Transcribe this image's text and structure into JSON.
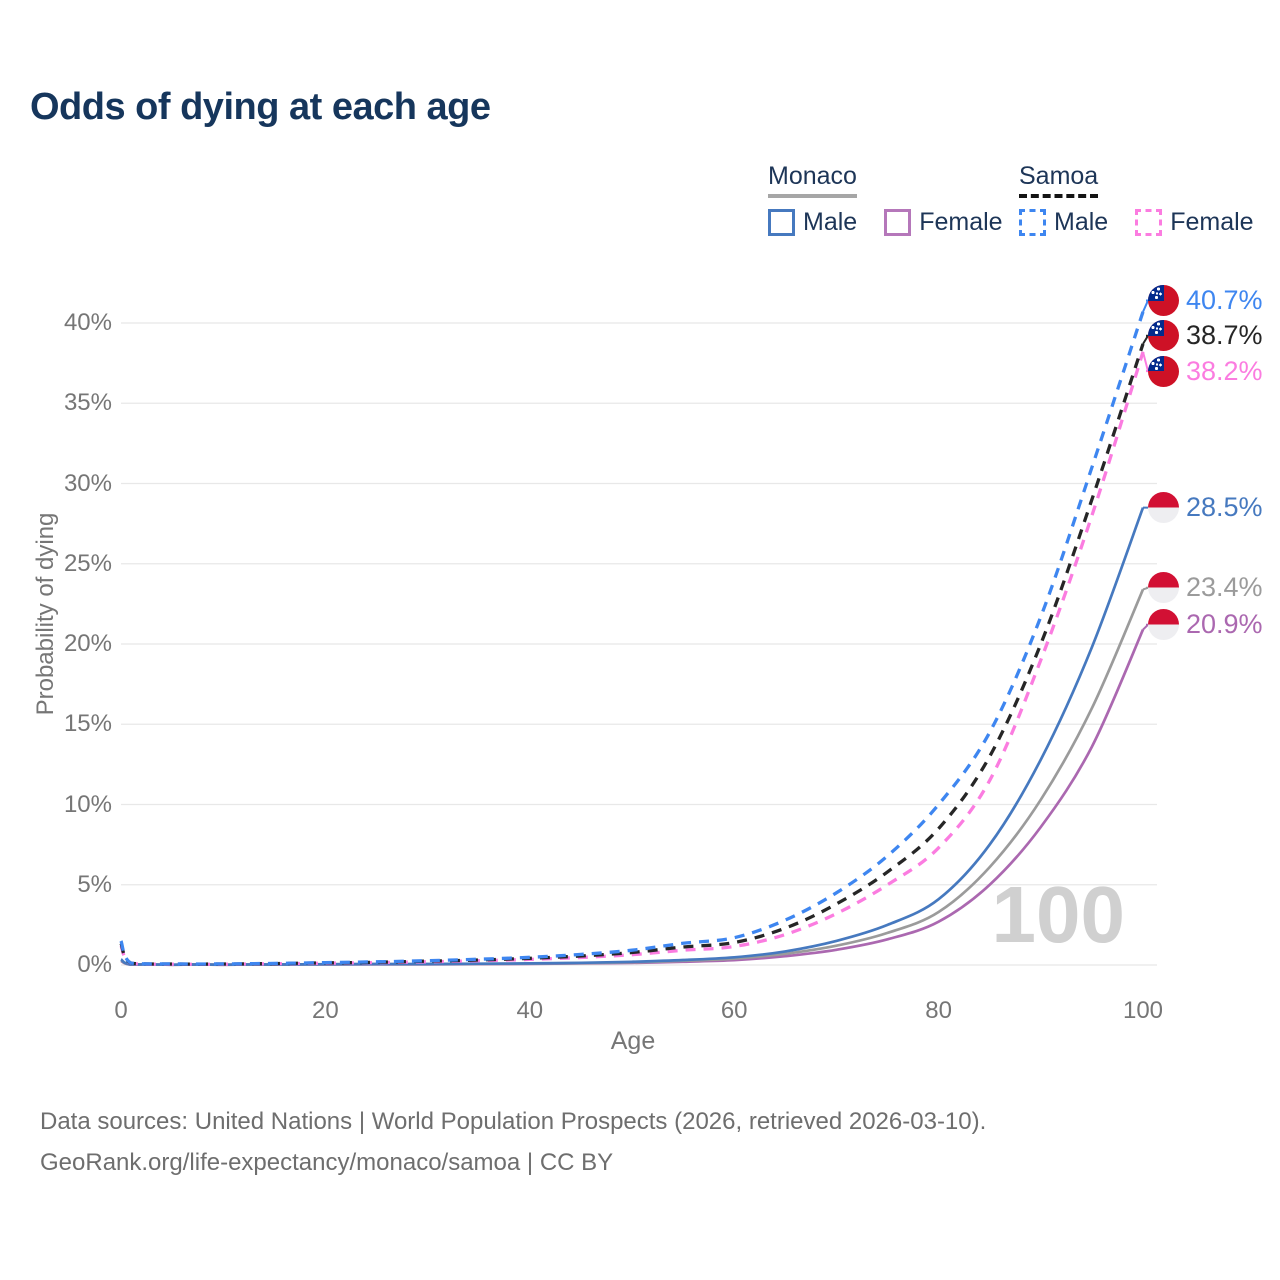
{
  "title": "Odds of dying at each age",
  "legend": {
    "monaco": {
      "name": "Monaco",
      "male_label": "Male",
      "female_label": "Female"
    },
    "samoa": {
      "name": "Samoa",
      "male_label": "Male",
      "female_label": "Female"
    }
  },
  "watermark": "100",
  "footer": {
    "line1": "Data sources: United Nations | World Population Prospects (2026, retrieved 2026-03-10).",
    "line2": "GeoRank.org/life-expectancy/monaco/samoa | CC BY"
  },
  "colors": {
    "title": "#16365c",
    "axis_text": "#767676",
    "gridline": "#e8e8e8",
    "watermark": "#d0d0d0",
    "samoa_male": "#3e86f0",
    "samoa_both": "#262626",
    "samoa_female": "#fb7ce0",
    "monaco_male": "#4679bf",
    "monaco_both": "#9b9b9b",
    "monaco_female": "#ab68b0"
  },
  "chart_data": {
    "type": "line",
    "title": "Odds of dying at each age",
    "xlabel": "Age",
    "ylabel": "Probability of dying",
    "xlim": [
      0,
      100
    ],
    "ylim": [
      0,
      42
    ],
    "grid": true,
    "x_ticks": [
      0,
      20,
      40,
      60,
      80,
      100
    ],
    "x_tick_labels": [
      "0",
      "20",
      "40",
      "60",
      "80",
      "100"
    ],
    "y_ticks": [
      0,
      5,
      10,
      15,
      20,
      25,
      30,
      35,
      40
    ],
    "y_tick_labels": [
      "0%",
      "5%",
      "10%",
      "15%",
      "20%",
      "25%",
      "30%",
      "35%",
      "40%"
    ],
    "ages": [
      0,
      1,
      5,
      10,
      15,
      20,
      25,
      30,
      35,
      40,
      45,
      50,
      55,
      60,
      65,
      70,
      75,
      80,
      85,
      90,
      95,
      100
    ],
    "series": [
      {
        "id": "monaco-female",
        "name": "Monaco Female",
        "country": "Monaco",
        "sex": "Female",
        "dashed": false,
        "color": "#ab68b0",
        "values": [
          0.25,
          0.02,
          0.01,
          0.01,
          0.02,
          0.03,
          0.04,
          0.04,
          0.05,
          0.07,
          0.1,
          0.13,
          0.2,
          0.3,
          0.55,
          0.95,
          1.6,
          2.7,
          5.0,
          8.6,
          13.6,
          20.9
        ]
      },
      {
        "id": "monaco-both",
        "name": "Monaco (both sexes)",
        "country": "Monaco",
        "sex": "Both",
        "dashed": false,
        "color": "#9b9b9b",
        "values": [
          0.3,
          0.025,
          0.015,
          0.015,
          0.025,
          0.04,
          0.05,
          0.05,
          0.07,
          0.09,
          0.12,
          0.17,
          0.26,
          0.4,
          0.7,
          1.2,
          2.0,
          3.3,
          6.1,
          10.3,
          16.0,
          23.4
        ]
      },
      {
        "id": "monaco-male",
        "name": "Monaco Male",
        "country": "Monaco",
        "sex": "Male",
        "dashed": false,
        "color": "#4679bf",
        "values": [
          0.35,
          0.03,
          0.02,
          0.02,
          0.03,
          0.05,
          0.06,
          0.06,
          0.08,
          0.1,
          0.14,
          0.2,
          0.31,
          0.48,
          0.85,
          1.5,
          2.5,
          4.1,
          7.5,
          12.8,
          19.8,
          28.5
        ]
      },
      {
        "id": "samoa-female",
        "name": "Samoa Female",
        "country": "Samoa",
        "sex": "Female",
        "dashed": true,
        "color": "#fb7ce0",
        "values": [
          1.2,
          0.1,
          0.05,
          0.05,
          0.08,
          0.11,
          0.15,
          0.2,
          0.27,
          0.35,
          0.47,
          0.64,
          0.92,
          1.15,
          1.9,
          3.2,
          5.0,
          7.3,
          11.5,
          19.0,
          28.0,
          38.2
        ]
      },
      {
        "id": "samoa-both",
        "name": "Samoa (both sexes)",
        "country": "Samoa",
        "sex": "Both",
        "dashed": true,
        "color": "#262626",
        "values": [
          1.35,
          0.11,
          0.06,
          0.06,
          0.09,
          0.13,
          0.17,
          0.24,
          0.31,
          0.42,
          0.56,
          0.78,
          1.12,
          1.4,
          2.3,
          3.8,
          5.8,
          8.5,
          13.0,
          20.0,
          29.0,
          38.7
        ]
      },
      {
        "id": "samoa-male",
        "name": "Samoa Male",
        "country": "Samoa",
        "sex": "Male",
        "dashed": true,
        "color": "#3e86f0",
        "values": [
          1.5,
          0.12,
          0.07,
          0.07,
          0.1,
          0.15,
          0.2,
          0.27,
          0.36,
          0.48,
          0.66,
          0.92,
          1.35,
          1.7,
          2.8,
          4.5,
          6.8,
          10.0,
          14.5,
          21.7,
          31.0,
          40.7
        ]
      }
    ],
    "end_labels": [
      {
        "id": "samoa-male",
        "flag": "samoa",
        "text": "40.7%",
        "value": 40.7,
        "label_pct": 41.4,
        "color": "#3e86f0"
      },
      {
        "id": "samoa-both",
        "flag": "samoa",
        "text": "38.7%",
        "value": 38.7,
        "label_pct": 39.2,
        "color": "#262626"
      },
      {
        "id": "samoa-female",
        "flag": "samoa",
        "text": "38.2%",
        "value": 38.2,
        "label_pct": 37.0,
        "color": "#fb7ce0"
      },
      {
        "id": "monaco-male",
        "flag": "monaco",
        "text": "28.5%",
        "value": 28.5,
        "label_pct": 28.5,
        "color": "#4679bf"
      },
      {
        "id": "monaco-both",
        "flag": "monaco",
        "text": "23.4%",
        "value": 23.4,
        "label_pct": 23.5,
        "color": "#9b9b9b"
      },
      {
        "id": "monaco-female",
        "flag": "monaco",
        "text": "20.9%",
        "value": 20.9,
        "label_pct": 21.2,
        "color": "#ab68b0"
      }
    ],
    "legend_position": "top-right"
  }
}
